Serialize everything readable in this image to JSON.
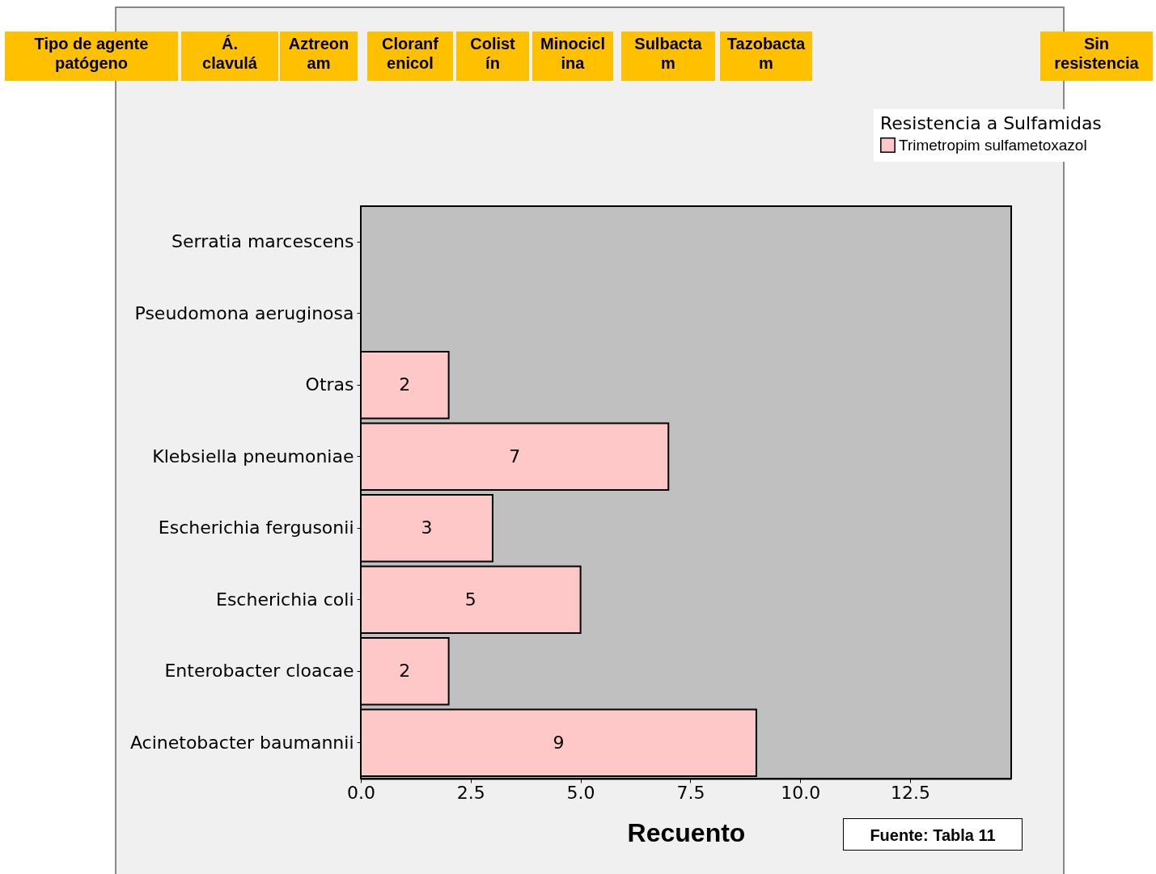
{
  "chart_data": {
    "type": "bar",
    "orientation": "horizontal",
    "xlabel": "Recuento",
    "legend_title": "Resistencia a Sulfamidas",
    "legend": "top right",
    "grid": false,
    "data_labels": true,
    "categories": [
      "Serratia marcescens",
      "Pseudomona aeruginosa",
      "Otras",
      "Klebsiella pneumoniae",
      "Escherichia fergusonii",
      "Escherichia coli",
      "Enterobacter cloacae",
      "Acinetobacter baumannii"
    ],
    "series": [
      {
        "name": "Trimetropim sulfametoxazol",
        "color": "#ffc8c8",
        "values": [
          null,
          null,
          2,
          7,
          3,
          5,
          2,
          9
        ]
      }
    ],
    "xlim": [
      0,
      14.8
    ],
    "xticks": [
      {
        "value": 0,
        "label": "0.0"
      },
      {
        "value": 2.5,
        "label": "2.5"
      },
      {
        "value": 5,
        "label": "5.0"
      },
      {
        "value": 7.5,
        "label": "7.5"
      },
      {
        "value": 10,
        "label": "10.0"
      },
      {
        "value": 12.5,
        "label": "12.5"
      }
    ],
    "annotations": [
      "Tipo de agente\npatógeno",
      "Á.\nclavulá",
      "Aztreon\nam",
      "Cloranf\nenicol",
      "Colist\nín",
      "Minocicl\nina",
      "Sulbacta\nm",
      "Tazobacta\nm",
      "Sin\nresistencia",
      "Fuente: Tabla 11"
    ]
  }
}
